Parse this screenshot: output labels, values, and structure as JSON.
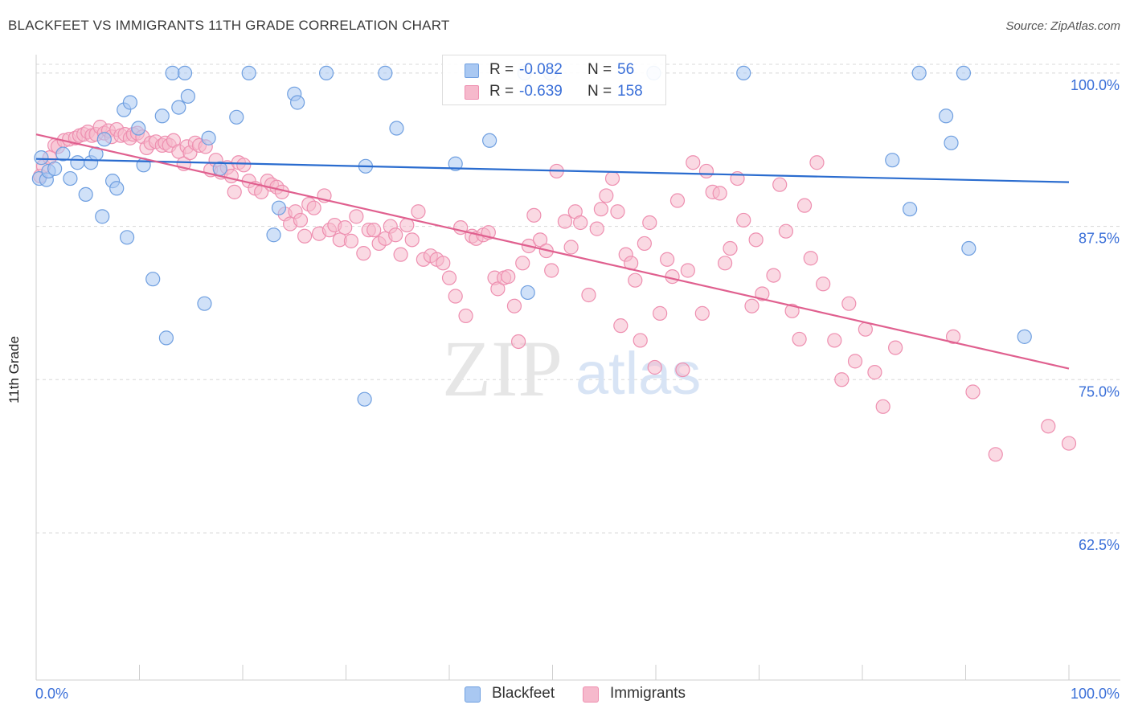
{
  "title": "BLACKFEET VS IMMIGRANTS 11TH GRADE CORRELATION CHART",
  "source": "Source: ZipAtlas.com",
  "watermark": {
    "zip": "ZIP",
    "atlas": "atlas"
  },
  "colors": {
    "blackfeet_fill": "#a9c8f2",
    "blackfeet_stroke": "#6f9fe0",
    "blackfeet_line": "#2a6ccf",
    "immigrants_fill": "#f6b9cc",
    "immigrants_stroke": "#ee8fb0",
    "immigrants_line": "#e0608f",
    "tick_text": "#3a6fd8",
    "grid": "#d8d8d8"
  },
  "legend": {
    "rows": [
      {
        "r_label": "R =",
        "r_value": "-0.082",
        "n_label": "N =",
        "n_value": "56",
        "color": "#a9c8f2",
        "border": "#6f9fe0"
      },
      {
        "r_label": "R =",
        "r_value": "-0.639",
        "n_label": "N =",
        "n_value": "158",
        "color": "#f6b9cc",
        "border": "#ee8fb0"
      }
    ],
    "bottom": [
      {
        "label": "Blackfeet",
        "color": "#a9c8f2",
        "border": "#6f9fe0"
      },
      {
        "label": "Immigrants",
        "color": "#f6b9cc",
        "border": "#ee8fb0"
      }
    ]
  },
  "chart_data": {
    "type": "scatter",
    "title": "BLACKFEET VS IMMIGRANTS 11TH GRADE CORRELATION CHART",
    "xlabel": "",
    "ylabel": "11th Grade",
    "xlim": [
      0,
      100
    ],
    "ylim": [
      50.5,
      101.5
    ],
    "x_tick_labels": [
      "0.0%",
      "100.0%"
    ],
    "y_ticks": [
      62.5,
      75.0,
      87.5,
      100.0
    ],
    "y_tick_labels": [
      "62.5%",
      "75.0%",
      "87.5%",
      "100.0%"
    ],
    "grid": "horizontal dashed",
    "legend_position": "top-center",
    "series": [
      {
        "name": "Blackfeet",
        "r": -0.082,
        "n": 56,
        "trend": {
          "x": [
            0,
            100
          ],
          "y": [
            93.0,
            91.1
          ]
        },
        "points": [
          [
            0.3,
            91.4
          ],
          [
            0.5,
            93.1
          ],
          [
            1.0,
            91.3
          ],
          [
            1.2,
            92.0
          ],
          [
            1.8,
            92.2
          ],
          [
            2.6,
            93.4
          ],
          [
            3.3,
            91.4
          ],
          [
            4.0,
            92.7
          ],
          [
            4.8,
            90.1
          ],
          [
            5.3,
            92.7
          ],
          [
            5.8,
            93.4
          ],
          [
            6.4,
            88.3
          ],
          [
            6.6,
            94.6
          ],
          [
            7.4,
            91.2
          ],
          [
            7.8,
            90.6
          ],
          [
            8.5,
            97.0
          ],
          [
            8.8,
            86.6
          ],
          [
            9.1,
            97.6
          ],
          [
            9.9,
            95.5
          ],
          [
            10.4,
            92.5
          ],
          [
            11.3,
            83.2
          ],
          [
            12.2,
            96.5
          ],
          [
            12.6,
            78.4
          ],
          [
            13.2,
            100.0
          ],
          [
            13.8,
            97.2
          ],
          [
            14.4,
            100.0
          ],
          [
            14.7,
            98.1
          ],
          [
            16.3,
            81.2
          ],
          [
            16.7,
            94.7
          ],
          [
            17.8,
            92.2
          ],
          [
            19.4,
            96.4
          ],
          [
            20.6,
            100.0
          ],
          [
            23.0,
            86.8
          ],
          [
            23.5,
            89.0
          ],
          [
            25.0,
            98.3
          ],
          [
            25.3,
            97.6
          ],
          [
            28.1,
            100.0
          ],
          [
            31.8,
            73.4
          ],
          [
            31.9,
            92.4
          ],
          [
            33.8,
            100.0
          ],
          [
            34.9,
            95.5
          ],
          [
            40.6,
            92.6
          ],
          [
            43.9,
            94.5
          ],
          [
            47.3,
            100.0
          ],
          [
            47.6,
            82.1
          ],
          [
            49.8,
            100.0
          ],
          [
            59.8,
            100.0
          ],
          [
            68.5,
            100.0
          ],
          [
            82.9,
            92.9
          ],
          [
            84.6,
            88.9
          ],
          [
            85.5,
            100.0
          ],
          [
            88.1,
            96.5
          ],
          [
            88.6,
            94.3
          ],
          [
            89.8,
            100.0
          ],
          [
            90.3,
            85.7
          ],
          [
            95.7,
            78.5
          ]
        ]
      },
      {
        "name": "Immigrants",
        "r": -0.639,
        "n": 158,
        "trend": {
          "x": [
            0,
            100
          ],
          "y": [
            95.0,
            75.9
          ]
        },
        "points": [
          [
            0.4,
            91.6
          ],
          [
            0.7,
            92.4
          ],
          [
            1.3,
            93.1
          ],
          [
            1.8,
            94.1
          ],
          [
            2.1,
            94.0
          ],
          [
            2.7,
            94.5
          ],
          [
            3.2,
            94.6
          ],
          [
            3.8,
            94.7
          ],
          [
            4.2,
            94.9
          ],
          [
            4.6,
            95.0
          ],
          [
            5.0,
            95.2
          ],
          [
            5.4,
            94.9
          ],
          [
            5.8,
            95.0
          ],
          [
            6.2,
            95.6
          ],
          [
            6.6,
            95.1
          ],
          [
            7.0,
            95.3
          ],
          [
            7.3,
            94.8
          ],
          [
            7.8,
            95.4
          ],
          [
            8.2,
            94.9
          ],
          [
            8.6,
            95.0
          ],
          [
            9.1,
            94.7
          ],
          [
            9.4,
            95.0
          ],
          [
            9.8,
            95.1
          ],
          [
            10.3,
            94.8
          ],
          [
            10.7,
            93.9
          ],
          [
            11.1,
            94.3
          ],
          [
            11.6,
            94.4
          ],
          [
            12.2,
            94.1
          ],
          [
            12.5,
            94.3
          ],
          [
            12.9,
            94.1
          ],
          [
            13.3,
            94.5
          ],
          [
            13.8,
            93.6
          ],
          [
            14.3,
            92.6
          ],
          [
            14.6,
            94.0
          ],
          [
            14.9,
            93.5
          ],
          [
            15.4,
            94.3
          ],
          [
            15.8,
            94.1
          ],
          [
            16.4,
            94.0
          ],
          [
            16.9,
            92.1
          ],
          [
            17.4,
            92.9
          ],
          [
            17.9,
            91.9
          ],
          [
            18.5,
            92.3
          ],
          [
            18.9,
            91.6
          ],
          [
            19.2,
            90.3
          ],
          [
            19.6,
            92.7
          ],
          [
            20.1,
            92.5
          ],
          [
            20.6,
            91.2
          ],
          [
            21.2,
            90.6
          ],
          [
            21.8,
            90.3
          ],
          [
            22.4,
            91.2
          ],
          [
            22.8,
            90.9
          ],
          [
            23.3,
            90.7
          ],
          [
            23.8,
            90.3
          ],
          [
            24.1,
            88.5
          ],
          [
            24.6,
            87.7
          ],
          [
            25.1,
            88.7
          ],
          [
            25.6,
            88.0
          ],
          [
            26.0,
            86.7
          ],
          [
            26.4,
            89.3
          ],
          [
            26.9,
            89.0
          ],
          [
            27.4,
            86.9
          ],
          [
            27.9,
            90.0
          ],
          [
            28.4,
            87.2
          ],
          [
            28.9,
            87.6
          ],
          [
            29.4,
            86.4
          ],
          [
            29.9,
            87.4
          ],
          [
            30.5,
            86.3
          ],
          [
            31.0,
            88.3
          ],
          [
            31.7,
            85.3
          ],
          [
            32.2,
            87.2
          ],
          [
            32.7,
            87.2
          ],
          [
            33.2,
            86.1
          ],
          [
            33.8,
            86.5
          ],
          [
            34.3,
            87.5
          ],
          [
            34.8,
            86.8
          ],
          [
            35.3,
            85.2
          ],
          [
            35.9,
            87.6
          ],
          [
            36.4,
            86.4
          ],
          [
            37.0,
            88.7
          ],
          [
            37.5,
            84.8
          ],
          [
            38.2,
            85.1
          ],
          [
            38.8,
            84.8
          ],
          [
            39.4,
            84.5
          ],
          [
            40.0,
            83.3
          ],
          [
            40.6,
            81.8
          ],
          [
            41.1,
            87.4
          ],
          [
            41.6,
            80.2
          ],
          [
            42.2,
            86.7
          ],
          [
            42.6,
            86.5
          ],
          [
            43.3,
            86.8
          ],
          [
            43.8,
            87.0
          ],
          [
            44.4,
            83.3
          ],
          [
            44.7,
            82.4
          ],
          [
            45.3,
            83.3
          ],
          [
            45.7,
            83.4
          ],
          [
            46.3,
            81.0
          ],
          [
            46.7,
            78.1
          ],
          [
            47.1,
            84.5
          ],
          [
            47.7,
            85.9
          ],
          [
            48.2,
            88.4
          ],
          [
            48.8,
            86.4
          ],
          [
            49.4,
            85.5
          ],
          [
            49.9,
            83.9
          ],
          [
            50.4,
            92.0
          ],
          [
            51.2,
            87.9
          ],
          [
            51.8,
            85.8
          ],
          [
            52.2,
            88.7
          ],
          [
            52.7,
            87.8
          ],
          [
            53.5,
            81.9
          ],
          [
            54.3,
            87.3
          ],
          [
            54.7,
            88.9
          ],
          [
            55.2,
            90.0
          ],
          [
            55.8,
            91.4
          ],
          [
            56.3,
            88.7
          ],
          [
            56.6,
            79.4
          ],
          [
            57.1,
            85.2
          ],
          [
            57.6,
            84.5
          ],
          [
            58.0,
            83.1
          ],
          [
            58.5,
            78.2
          ],
          [
            58.9,
            86.1
          ],
          [
            59.4,
            87.8
          ],
          [
            59.9,
            76.0
          ],
          [
            60.4,
            80.4
          ],
          [
            61.1,
            84.8
          ],
          [
            61.6,
            83.4
          ],
          [
            62.1,
            89.6
          ],
          [
            62.6,
            75.8
          ],
          [
            63.1,
            83.9
          ],
          [
            63.6,
            92.7
          ],
          [
            64.5,
            80.4
          ],
          [
            64.9,
            92.0
          ],
          [
            65.5,
            90.3
          ],
          [
            66.2,
            90.2
          ],
          [
            66.7,
            84.5
          ],
          [
            67.2,
            85.7
          ],
          [
            67.9,
            91.4
          ],
          [
            68.5,
            88.0
          ],
          [
            69.3,
            81.0
          ],
          [
            69.7,
            86.4
          ],
          [
            70.3,
            82.0
          ],
          [
            71.4,
            83.5
          ],
          [
            72.0,
            90.9
          ],
          [
            72.6,
            87.1
          ],
          [
            73.2,
            80.6
          ],
          [
            73.9,
            78.3
          ],
          [
            74.4,
            89.2
          ],
          [
            75.0,
            84.9
          ],
          [
            75.6,
            92.7
          ],
          [
            76.2,
            82.8
          ],
          [
            77.3,
            78.2
          ],
          [
            78.0,
            75.0
          ],
          [
            78.7,
            81.2
          ],
          [
            79.3,
            76.5
          ],
          [
            80.3,
            79.1
          ],
          [
            81.2,
            75.6
          ],
          [
            82.0,
            72.8
          ],
          [
            83.2,
            77.6
          ],
          [
            88.8,
            78.5
          ],
          [
            90.7,
            74.0
          ],
          [
            92.9,
            68.9
          ],
          [
            98.0,
            71.2
          ],
          [
            100.0,
            69.8
          ]
        ]
      }
    ]
  }
}
